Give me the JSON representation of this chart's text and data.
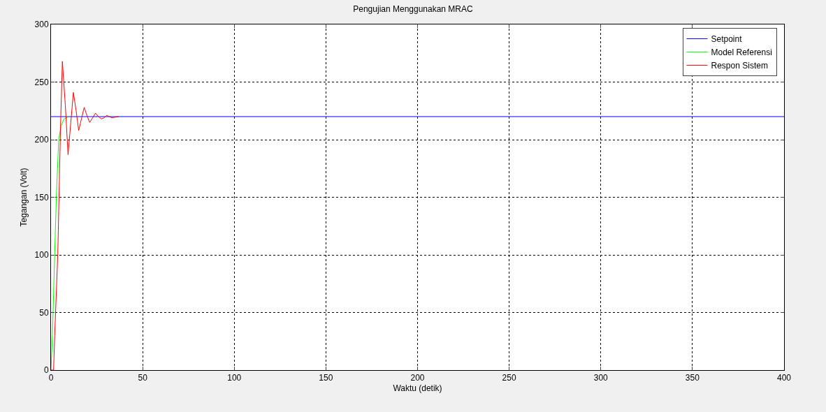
{
  "chart_data": {
    "type": "line",
    "title": "Pengujian Menggunakan MRAC",
    "xlabel": "Waktu (detik)",
    "ylabel": "Tegangan (Volt)",
    "series": [
      {
        "name": "Setpoint",
        "color": "#0000ff",
        "x": [
          0,
          400
        ],
        "values": [
          220,
          220
        ]
      },
      {
        "name": "Model Referensi",
        "color": "#00ff00",
        "x": [
          0,
          0.8,
          2.0,
          2.9,
          4.2,
          5.5,
          7.1,
          9.8
        ],
        "values": [
          0,
          32,
          101,
          150,
          200,
          212,
          218,
          220
        ]
      },
      {
        "name": "Respon Sistem",
        "color": "#ff0000",
        "x": [
          0,
          1.4,
          2.0,
          3.7,
          5.2,
          6.2,
          7.8,
          9.3,
          10.8,
          12.2,
          13.7,
          15.1,
          16.6,
          18.1,
          19.6,
          21.1,
          22.7,
          24.3,
          25.9,
          27.5,
          29,
          30.4,
          33.2,
          37
        ],
        "values": [
          0,
          0,
          30,
          101,
          212,
          268,
          230,
          187,
          215,
          241,
          225,
          208,
          218,
          228,
          221,
          215,
          219,
          223,
          220,
          218,
          219,
          221,
          219,
          220
        ]
      }
    ],
    "xlim": [
      0,
      400
    ],
    "xticks": [
      0,
      50,
      100,
      150,
      200,
      250,
      300,
      350,
      400
    ],
    "ylim": [
      0,
      300
    ],
    "yticks": [
      0,
      50,
      100,
      150,
      200,
      250,
      300
    ],
    "grid": true,
    "legend": "top right",
    "line_style": "solid",
    "marker": "none"
  }
}
